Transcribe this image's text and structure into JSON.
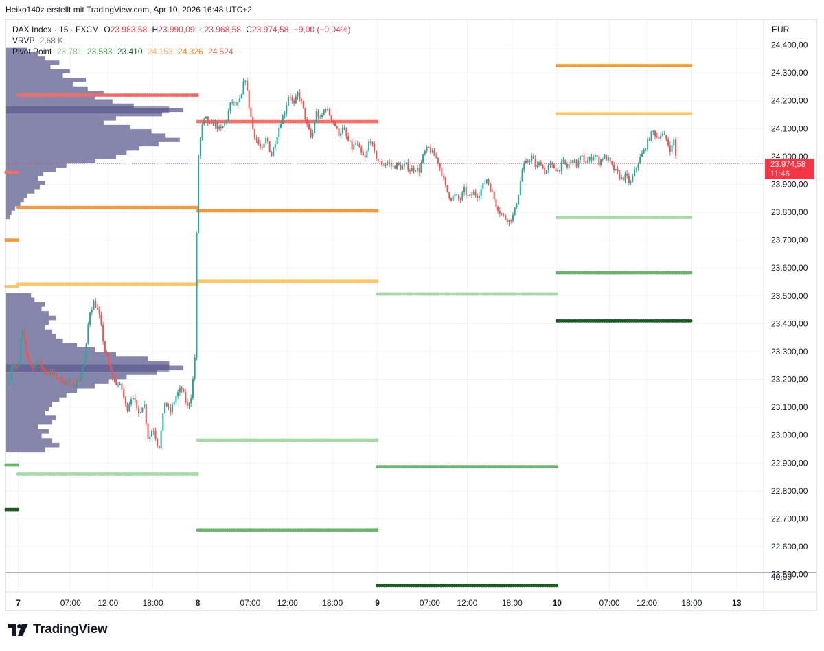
{
  "caption": "Heiko140z erstellt mit TradingView.com, Apr 10, 2026 16:48 UTC+2",
  "legend": {
    "symbol": "DAX Index · 15 · FXCM",
    "ohlc": {
      "o_label": "O",
      "o": "23.983,58",
      "h_label": "H",
      "h": "23.990,09",
      "l_label": "L",
      "l": "23.968,58",
      "c_label": "C",
      "c": "23.974,58",
      "change": "−9,00 (−0,04%)"
    },
    "vrvp_label": "VRVP",
    "vrvp_value": "2,68 K",
    "pivot_label": "Pivot Point",
    "pivot_values": [
      "23.781",
      "23.583",
      "23.410",
      "24.153",
      "24.326",
      "24.524"
    ],
    "pivot_colors": [
      "#7fc27f",
      "#3f9a47",
      "#1f5f29",
      "#f5b350",
      "#f08a24",
      "#f06a5a"
    ]
  },
  "price_scale": {
    "currency": "EUR",
    "last_price": "23.974,58",
    "countdown": "11:46",
    "bottom_label": "40,00"
  },
  "logo_text": "TradingView",
  "colors": {
    "up": "#26a69a",
    "down": "#ef5350",
    "volume_profile": "#6b6b9a",
    "volume_poc": "#4e4e86",
    "s1": "#a8d8a8",
    "s2": "#6fb26f",
    "s3": "#1e5a23",
    "r1": "#fbc56b",
    "r2": "#f29a3a",
    "r3": "#f07067",
    "last_price": "#f23645"
  },
  "chart_data": {
    "type": "candlestick",
    "title": "DAX Index · 15 · FXCM",
    "y_unit": "EUR",
    "y_range": [
      22440,
      24490
    ],
    "y_ticks": [
      {
        "value": 24400,
        "label": "24.400,00"
      },
      {
        "value": 24300,
        "label": "24.300,00"
      },
      {
        "value": 24200,
        "label": "24.200,00"
      },
      {
        "value": 24100,
        "label": "24.100,00"
      },
      {
        "value": 24000,
        "label": "24.000,00"
      },
      {
        "value": 23900,
        "label": "23.900,00"
      },
      {
        "value": 23800,
        "label": "23.800,00"
      },
      {
        "value": 23700,
        "label": "23.700,00"
      },
      {
        "value": 23600,
        "label": "23.600,00"
      },
      {
        "value": 23500,
        "label": "23.500,00"
      },
      {
        "value": 23400,
        "label": "23.400,00"
      },
      {
        "value": 23300,
        "label": "23.300,00"
      },
      {
        "value": 23200,
        "label": "23.200,00"
      },
      {
        "value": 23100,
        "label": "23.100,00"
      },
      {
        "value": 23000,
        "label": "23.000,00"
      },
      {
        "value": 22900,
        "label": "22.900,00"
      },
      {
        "value": 22800,
        "label": "22.800,00"
      },
      {
        "value": 22700,
        "label": "22.700,00"
      },
      {
        "value": 22600,
        "label": "22.600,00"
      },
      {
        "value": 22500,
        "label": "22.500,00"
      }
    ],
    "x_range_hours": [
      -1.6,
      99.5
    ],
    "x_ticks": [
      {
        "hour": 0,
        "label": "7",
        "bold": true
      },
      {
        "hour": 7,
        "label": "07:00"
      },
      {
        "hour": 12,
        "label": "12:00"
      },
      {
        "hour": 18,
        "label": "18:00"
      },
      {
        "hour": 24,
        "label": "8",
        "bold": true
      },
      {
        "hour": 31,
        "label": "07:00"
      },
      {
        "hour": 36,
        "label": "12:00"
      },
      {
        "hour": 42,
        "label": "18:00"
      },
      {
        "hour": 48,
        "label": "9",
        "bold": true
      },
      {
        "hour": 55,
        "label": "07:00"
      },
      {
        "hour": 60,
        "label": "12:00"
      },
      {
        "hour": 66,
        "label": "18:00"
      },
      {
        "hour": 72,
        "label": "10",
        "bold": true
      },
      {
        "hour": 79,
        "label": "07:00"
      },
      {
        "hour": 84,
        "label": "12:00"
      },
      {
        "hour": 90,
        "label": "18:00"
      },
      {
        "hour": 96,
        "label": "13",
        "bold": true
      }
    ],
    "price_path": [
      [
        -1.4,
        23180
      ],
      [
        -0.8,
        23260
      ],
      [
        0,
        23230
      ],
      [
        0.5,
        23390
      ],
      [
        1,
        23300
      ],
      [
        1.8,
        23240
      ],
      [
        2.5,
        23270
      ],
      [
        3.5,
        23230
      ],
      [
        4.5,
        23220
      ],
      [
        5.5,
        23200
      ],
      [
        6.5,
        23190
      ],
      [
        7.3,
        23180
      ],
      [
        8.2,
        23200
      ],
      [
        9,
        23290
      ],
      [
        9.5,
        23440
      ],
      [
        10.2,
        23480
      ],
      [
        10.9,
        23420
      ],
      [
        11.6,
        23300
      ],
      [
        12.3,
        23230
      ],
      [
        13,
        23190
      ],
      [
        13.8,
        23170
      ],
      [
        14.5,
        23090
      ],
      [
        15.3,
        23150
      ],
      [
        16,
        23070
      ],
      [
        16.8,
        23120
      ],
      [
        17.4,
        22980
      ],
      [
        18,
        23030
      ],
      [
        18.8,
        22950
      ],
      [
        19.6,
        23120
      ],
      [
        20.3,
        23080
      ],
      [
        21.1,
        23140
      ],
      [
        21.8,
        23170
      ],
      [
        22.6,
        23100
      ],
      [
        23.2,
        23150
      ],
      [
        23.6,
        23280
      ],
      [
        24,
        23980
      ],
      [
        24.5,
        24100
      ],
      [
        25,
        24140
      ],
      [
        25.6,
        24110
      ],
      [
        26.3,
        24120
      ],
      [
        27,
        24090
      ],
      [
        27.8,
        24130
      ],
      [
        28.5,
        24200
      ],
      [
        29.2,
        24180
      ],
      [
        29.8,
        24210
      ],
      [
        30.3,
        24290
      ],
      [
        30.8,
        24190
      ],
      [
        31.4,
        24090
      ],
      [
        32,
        24050
      ],
      [
        32.6,
        24020
      ],
      [
        33.2,
        24070
      ],
      [
        33.8,
        24000
      ],
      [
        34.4,
        24060
      ],
      [
        35,
        24120
      ],
      [
        35.6,
        24160
      ],
      [
        36.2,
        24230
      ],
      [
        36.8,
        24180
      ],
      [
        37.4,
        24230
      ],
      [
        38,
        24180
      ],
      [
        38.6,
        24110
      ],
      [
        39.2,
        24060
      ],
      [
        39.8,
        24160
      ],
      [
        40.4,
        24130
      ],
      [
        41,
        24180
      ],
      [
        41.6,
        24150
      ],
      [
        42.2,
        24120
      ],
      [
        42.8,
        24080
      ],
      [
        43.4,
        24100
      ],
      [
        44,
        24060
      ],
      [
        44.6,
        24030
      ],
      [
        45.2,
        24050
      ],
      [
        45.8,
        24010
      ],
      [
        46.4,
        23990
      ],
      [
        47,
        24070
      ],
      [
        47.6,
        24010
      ],
      [
        48.2,
        23980
      ],
      [
        48.8,
        23970
      ],
      [
        49.4,
        23980
      ],
      [
        50,
        23960
      ],
      [
        50.6,
        23970
      ],
      [
        51.2,
        23960
      ],
      [
        51.8,
        23970
      ],
      [
        52.4,
        23950
      ],
      [
        53,
        23960
      ],
      [
        53.6,
        23950
      ],
      [
        54.2,
        24010
      ],
      [
        54.8,
        24030
      ],
      [
        55.4,
        24010
      ],
      [
        56,
        23990
      ],
      [
        56.6,
        23940
      ],
      [
        57.2,
        23880
      ],
      [
        57.8,
        23850
      ],
      [
        58.4,
        23860
      ],
      [
        59,
        23840
      ],
      [
        59.6,
        23880
      ],
      [
        60.2,
        23850
      ],
      [
        60.8,
        23870
      ],
      [
        61.4,
        23860
      ],
      [
        62,
        23890
      ],
      [
        62.6,
        23920
      ],
      [
        63.2,
        23880
      ],
      [
        63.8,
        23830
      ],
      [
        64.4,
        23800
      ],
      [
        65,
        23780
      ],
      [
        65.6,
        23770
      ],
      [
        66.2,
        23790
      ],
      [
        66.8,
        23860
      ],
      [
        67.4,
        23960
      ],
      [
        68,
        23980
      ],
      [
        68.6,
        24000
      ],
      [
        69.2,
        23960
      ],
      [
        69.8,
        23980
      ],
      [
        70.4,
        23940
      ],
      [
        71,
        23970
      ],
      [
        71.6,
        23960
      ],
      [
        72.2,
        23950
      ],
      [
        72.8,
        23980
      ],
      [
        73.4,
        23960
      ],
      [
        74,
        23990
      ],
      [
        74.6,
        23970
      ],
      [
        75.2,
        24000
      ],
      [
        75.8,
        23980
      ],
      [
        76.4,
        23990
      ],
      [
        77,
        24010
      ],
      [
        77.6,
        23980
      ],
      [
        78.2,
        24000
      ],
      [
        78.8,
        23990
      ],
      [
        79.4,
        23960
      ],
      [
        80,
        23940
      ],
      [
        80.6,
        23920
      ],
      [
        81.2,
        23930
      ],
      [
        81.8,
        23900
      ],
      [
        82.4,
        23950
      ],
      [
        83,
        23990
      ],
      [
        83.6,
        24020
      ],
      [
        84.2,
        24060
      ],
      [
        84.8,
        24090
      ],
      [
        85.4,
        24070
      ],
      [
        86,
        24080
      ],
      [
        86.6,
        24060
      ],
      [
        87.2,
        24020
      ],
      [
        87.6,
        24060
      ],
      [
        88,
        23975
      ]
    ],
    "pivot_segments": [
      {
        "x": [
          -1.6,
          0
        ],
        "level": "r2",
        "value": 23700
      },
      {
        "x": [
          -1.6,
          0
        ],
        "level": "r1",
        "value": 23533
      },
      {
        "x": [
          -1.6,
          0
        ],
        "level": "s2",
        "value": 22893
      },
      {
        "x": [
          -1.6,
          0
        ],
        "level": "s3",
        "value": 22733
      },
      {
        "x": [
          -1.6,
          0
        ],
        "level": "r3",
        "value": 23943
      },
      {
        "x": [
          0,
          24
        ],
        "level": "r3",
        "value": 24220
      },
      {
        "x": [
          0,
          24
        ],
        "level": "r2",
        "value": 23817
      },
      {
        "x": [
          0,
          24
        ],
        "level": "r1",
        "value": 23542
      },
      {
        "x": [
          0,
          24
        ],
        "level": "s1",
        "value": 22860
      },
      {
        "x": [
          24,
          48
        ],
        "level": "r3",
        "value": 24125
      },
      {
        "x": [
          24,
          48
        ],
        "level": "r2",
        "value": 23805
      },
      {
        "x": [
          24,
          48
        ],
        "level": "r1",
        "value": 23552
      },
      {
        "x": [
          24,
          48
        ],
        "level": "s1",
        "value": 22982
      },
      {
        "x": [
          24,
          48
        ],
        "level": "s2",
        "value": 22660
      },
      {
        "x": [
          48,
          72
        ],
        "level": "s1",
        "value": 23507
      },
      {
        "x": [
          48,
          72
        ],
        "level": "s2",
        "value": 22887
      },
      {
        "x": [
          48,
          72
        ],
        "level": "s3",
        "value": 22460
      },
      {
        "x": [
          72,
          90
        ],
        "level": "r2",
        "value": 24326
      },
      {
        "x": [
          72,
          90
        ],
        "level": "r1",
        "value": 24153
      },
      {
        "x": [
          72,
          90
        ],
        "level": "s1",
        "value": 23781
      },
      {
        "x": [
          72,
          90
        ],
        "level": "s2",
        "value": 23583
      },
      {
        "x": [
          72,
          90
        ],
        "level": "s3",
        "value": 23410
      }
    ],
    "volume_profiles": [
      {
        "price_range": [
          23775,
          24390
        ],
        "widths": [
          0.02,
          0.03,
          0.05,
          0.08,
          0.1,
          0.12,
          0.16,
          0.19,
          0.22,
          0.18,
          0.21,
          0.28,
          0.34,
          0.5,
          0.62,
          0.68,
          0.75,
          0.86,
          0.98,
          0.9,
          0.82,
          0.7,
          0.55,
          0.62,
          0.88,
          1.0,
          0.72,
          0.6,
          0.5,
          0.55,
          0.46,
          0.38,
          0.45,
          0.32,
          0.36,
          0.25,
          0.3,
          0.22,
          0.18,
          0.12
        ],
        "poc_price": 24075
      },
      {
        "price_range": [
          22940,
          23510
        ],
        "widths": [
          0.22,
          0.3,
          0.26,
          0.2,
          0.24,
          0.18,
          0.26,
          0.28,
          0.22,
          0.24,
          0.26,
          0.3,
          0.34,
          0.4,
          0.5,
          0.58,
          0.68,
          0.85,
          1.0,
          0.92,
          0.8,
          0.62,
          0.5,
          0.4,
          0.32,
          0.28,
          0.26,
          0.22,
          0.24,
          0.28,
          0.24,
          0.2,
          0.22,
          0.16,
          0.14
        ],
        "poc_price": 23220
      }
    ]
  }
}
